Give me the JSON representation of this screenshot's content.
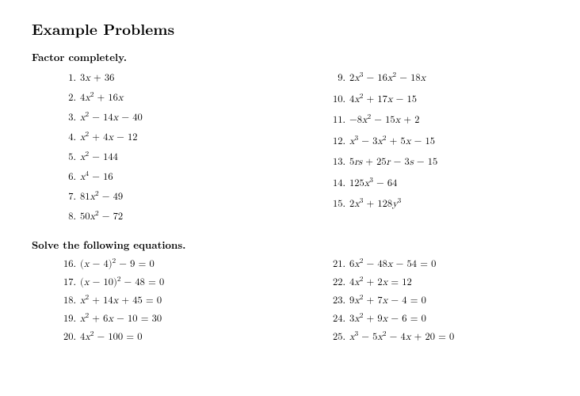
{
  "title": "Example Problems",
  "instructionA": "Factor completely.",
  "instructionB": "Solve the following equations.",
  "sectionA": {
    "left": [
      {
        "n": "1.",
        "expr": "3<i>x</i> + 36"
      },
      {
        "n": "2.",
        "expr": "4<i>x</i><sup>2</sup> + 16<i>x</i>"
      },
      {
        "n": "3.",
        "expr": "<i>x</i><sup>2</sup> − 14<i>x</i> − 40"
      },
      {
        "n": "4.",
        "expr": "<i>x</i><sup>2</sup> + 4<i>x</i> − 12"
      },
      {
        "n": "5.",
        "expr": "<i>x</i><sup>2</sup> − 144"
      },
      {
        "n": "6.",
        "expr": "<i>x</i><sup>4</sup> − 16"
      },
      {
        "n": "7.",
        "expr": "81<i>x</i><sup>2</sup> − 49"
      },
      {
        "n": "8.",
        "expr": "50<i>x</i><sup>2</sup> − 72"
      }
    ],
    "right": [
      {
        "n": "9.",
        "expr": "2<i>x</i><sup>3</sup> − 16<i>x</i><sup>2</sup> − 18<i>x</i>"
      },
      {
        "n": "10.",
        "expr": "4<i>x</i><sup>2</sup> + 17<i>x</i> − 15"
      },
      {
        "n": "11.",
        "expr": "−8<i>x</i><sup>2</sup> − 15<i>x</i> + 2"
      },
      {
        "n": "12.",
        "expr": "<i>x</i><sup>3</sup> − 3<i>x</i><sup>2</sup> + 5<i>x</i> − 15"
      },
      {
        "n": "13.",
        "expr": "5<i>rs</i> + 25<i>r</i> − 3<i>s</i> − 15"
      },
      {
        "n": "14.",
        "expr": "125<i>x</i><sup>3</sup> − 64"
      },
      {
        "n": "15.",
        "expr": "2<i>x</i><sup>3</sup> + 128<i>y</i><sup>3</sup>"
      }
    ]
  },
  "sectionB": {
    "left": [
      {
        "n": "16.",
        "expr": "(<i>x</i> − 4)<sup>2</sup> − 9 = 0"
      },
      {
        "n": "17.",
        "expr": "(<i>x</i> − 10)<sup>2</sup> − 48 = 0"
      },
      {
        "n": "18.",
        "expr": "<i>x</i><sup>2</sup> + 14<i>x</i> + 45 = 0"
      },
      {
        "n": "19.",
        "expr": "<i>x</i><sup>2</sup> + 6<i>x</i> − 10 = 30"
      },
      {
        "n": "20.",
        "expr": "4<i>x</i><sup>2</sup> − 100 = 0"
      }
    ],
    "right": [
      {
        "n": "21.",
        "expr": "6<i>x</i><sup>2</sup> − 48<i>x</i> − 54 = 0"
      },
      {
        "n": "22.",
        "expr": "4<i>x</i><sup>2</sup> + 2<i>x</i> = 12"
      },
      {
        "n": "23.",
        "expr": "9<i>x</i><sup>2</sup> + 7<i>x</i> − 4 = 0"
      },
      {
        "n": "24.",
        "expr": "3<i>x</i><sup>2</sup> + 9<i>x</i> − 6 = 0"
      },
      {
        "n": "25.",
        "expr": "<i>x</i><sup>3</sup> − 5<i>x</i><sup>2</sup> − 4<i>x</i> + 20 = 0"
      }
    ]
  }
}
